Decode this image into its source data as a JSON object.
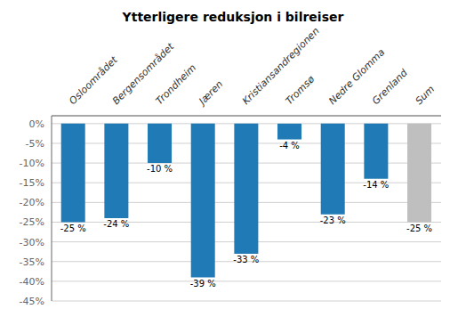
{
  "chart_data": {
    "type": "bar",
    "title": "Ytterligere reduksjon i bilreiser",
    "categories": [
      "Osloområdet",
      "Bergensområdet",
      "Trondheim",
      "Jæren",
      "Kristiansandregionen",
      "Tromsø",
      "Nedre Glomma",
      "Grenland",
      "Sum"
    ],
    "values": [
      -25,
      -24,
      -10,
      -39,
      -33,
      -4,
      -23,
      -14,
      -25
    ],
    "value_labels": [
      "-25 %",
      "-24 %",
      "-10 %",
      "-39 %",
      "-33 %",
      "-4 %",
      "-23 %",
      "-14 %",
      "-25 %"
    ],
    "data_labels": true,
    "colors": [
      "#1F7AB5",
      "#1F7AB5",
      "#1F7AB5",
      "#1F7AB5",
      "#1F7AB5",
      "#1F7AB5",
      "#1F7AB5",
      "#1F7AB5",
      "#BFBFBF"
    ],
    "ylim": [
      -45,
      2
    ],
    "yticks": [
      {
        "value": 0,
        "label": "0%"
      },
      {
        "value": -5,
        "label": "-5%"
      },
      {
        "value": -10,
        "label": "-10%"
      },
      {
        "value": -15,
        "label": "-15%"
      },
      {
        "value": -20,
        "label": "-20%"
      },
      {
        "value": -25,
        "label": "-25%"
      },
      {
        "value": -30,
        "label": "-30%"
      },
      {
        "value": -35,
        "label": "-35%"
      },
      {
        "value": -40,
        "label": "-40%"
      },
      {
        "value": -45,
        "label": "-45%"
      }
    ],
    "grid": true
  }
}
